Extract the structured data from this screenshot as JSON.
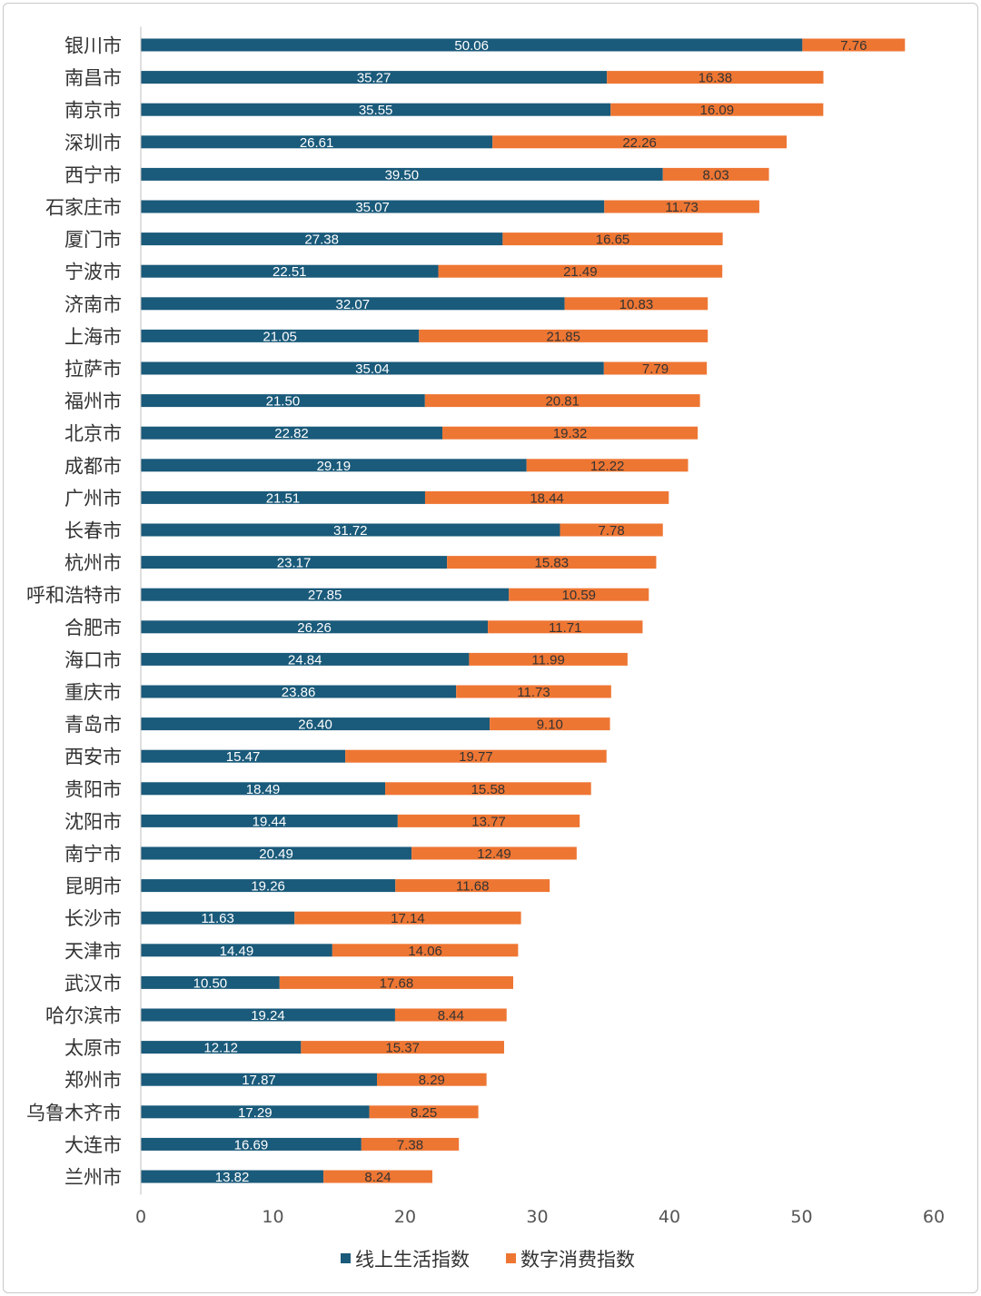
{
  "chart_data": {
    "type": "bar",
    "orientation": "horizontal",
    "stacked": true,
    "categories": [
      "银川市",
      "南昌市",
      "南京市",
      "深圳市",
      "西宁市",
      "石家庄市",
      "厦门市",
      "宁波市",
      "济南市",
      "上海市",
      "拉萨市",
      "福州市",
      "北京市",
      "成都市",
      "广州市",
      "长春市",
      "杭州市",
      "呼和浩特市",
      "合肥市",
      "海口市",
      "重庆市",
      "青岛市",
      "西安市",
      "贵阳市",
      "沈阳市",
      "南宁市",
      "昆明市",
      "长沙市",
      "天津市",
      "武汉市",
      "哈尔滨市",
      "太原市",
      "郑州市",
      "乌鲁木齐市",
      "大连市",
      "兰州市"
    ],
    "series": [
      {
        "name": "线上生活指数",
        "color": "#1a5a7a",
        "label_color": "#ffffff",
        "values": [
          50.06,
          35.27,
          35.55,
          26.61,
          39.5,
          35.07,
          27.38,
          22.51,
          32.07,
          21.05,
          35.04,
          21.5,
          22.82,
          29.19,
          21.51,
          31.72,
          23.17,
          27.85,
          26.26,
          24.84,
          23.86,
          26.4,
          15.47,
          18.49,
          19.44,
          20.49,
          19.26,
          11.63,
          14.49,
          10.5,
          19.24,
          12.12,
          17.87,
          17.29,
          16.69,
          13.82
        ],
        "labels": [
          "50.06",
          "35.27",
          "35.55",
          "26.61",
          "39.50",
          "35.07",
          "27.38",
          "22.51",
          "32.07",
          "21.05",
          "35.04",
          "21.50",
          "22.82",
          "29.19",
          "21.51",
          "31.72",
          "23.17",
          "27.85",
          "26.26",
          "24.84",
          "23.86",
          "26.40",
          "15.47",
          "18.49",
          "19.44",
          "20.49",
          "19.26",
          "11.63",
          "14.49",
          "10.50",
          "19.24",
          "12.12",
          "17.87",
          "17.29",
          "16.69",
          "13.82"
        ]
      },
      {
        "name": "数字消费指数",
        "color": "#ee7633",
        "label_color": "#333333",
        "values": [
          7.76,
          16.38,
          16.09,
          22.26,
          8.03,
          11.73,
          16.65,
          21.49,
          10.83,
          21.85,
          7.79,
          20.81,
          19.32,
          12.22,
          18.44,
          7.78,
          15.83,
          10.59,
          11.71,
          11.99,
          11.73,
          9.1,
          19.77,
          15.58,
          13.77,
          12.49,
          11.68,
          17.14,
          14.06,
          17.68,
          8.44,
          15.37,
          8.29,
          8.25,
          7.38,
          8.24
        ],
        "labels": [
          "7.76",
          "16.38",
          "16.09",
          "22.26",
          "8.03",
          "11.73",
          "16.65",
          "21.49",
          "10.83",
          "21.85",
          "7.79",
          "20.81",
          "19.32",
          "12.22",
          "18.44",
          "7.78",
          "15.83",
          "10.59",
          "11.71",
          "11.99",
          "11.73",
          "9.10",
          "19.77",
          "15.58",
          "13.77",
          "12.49",
          "11.68",
          "17.14",
          "14.06",
          "17.68",
          "8.44",
          "15.37",
          "8.29",
          "8.25",
          "7.38",
          "8.24"
        ]
      }
    ],
    "xlim": [
      0,
      60
    ],
    "xticks": [
      "0",
      "10",
      "20",
      "30",
      "40",
      "50",
      "60"
    ],
    "grid": false,
    "legend": "bottom",
    "title": "",
    "xlabel": "",
    "ylabel": ""
  }
}
